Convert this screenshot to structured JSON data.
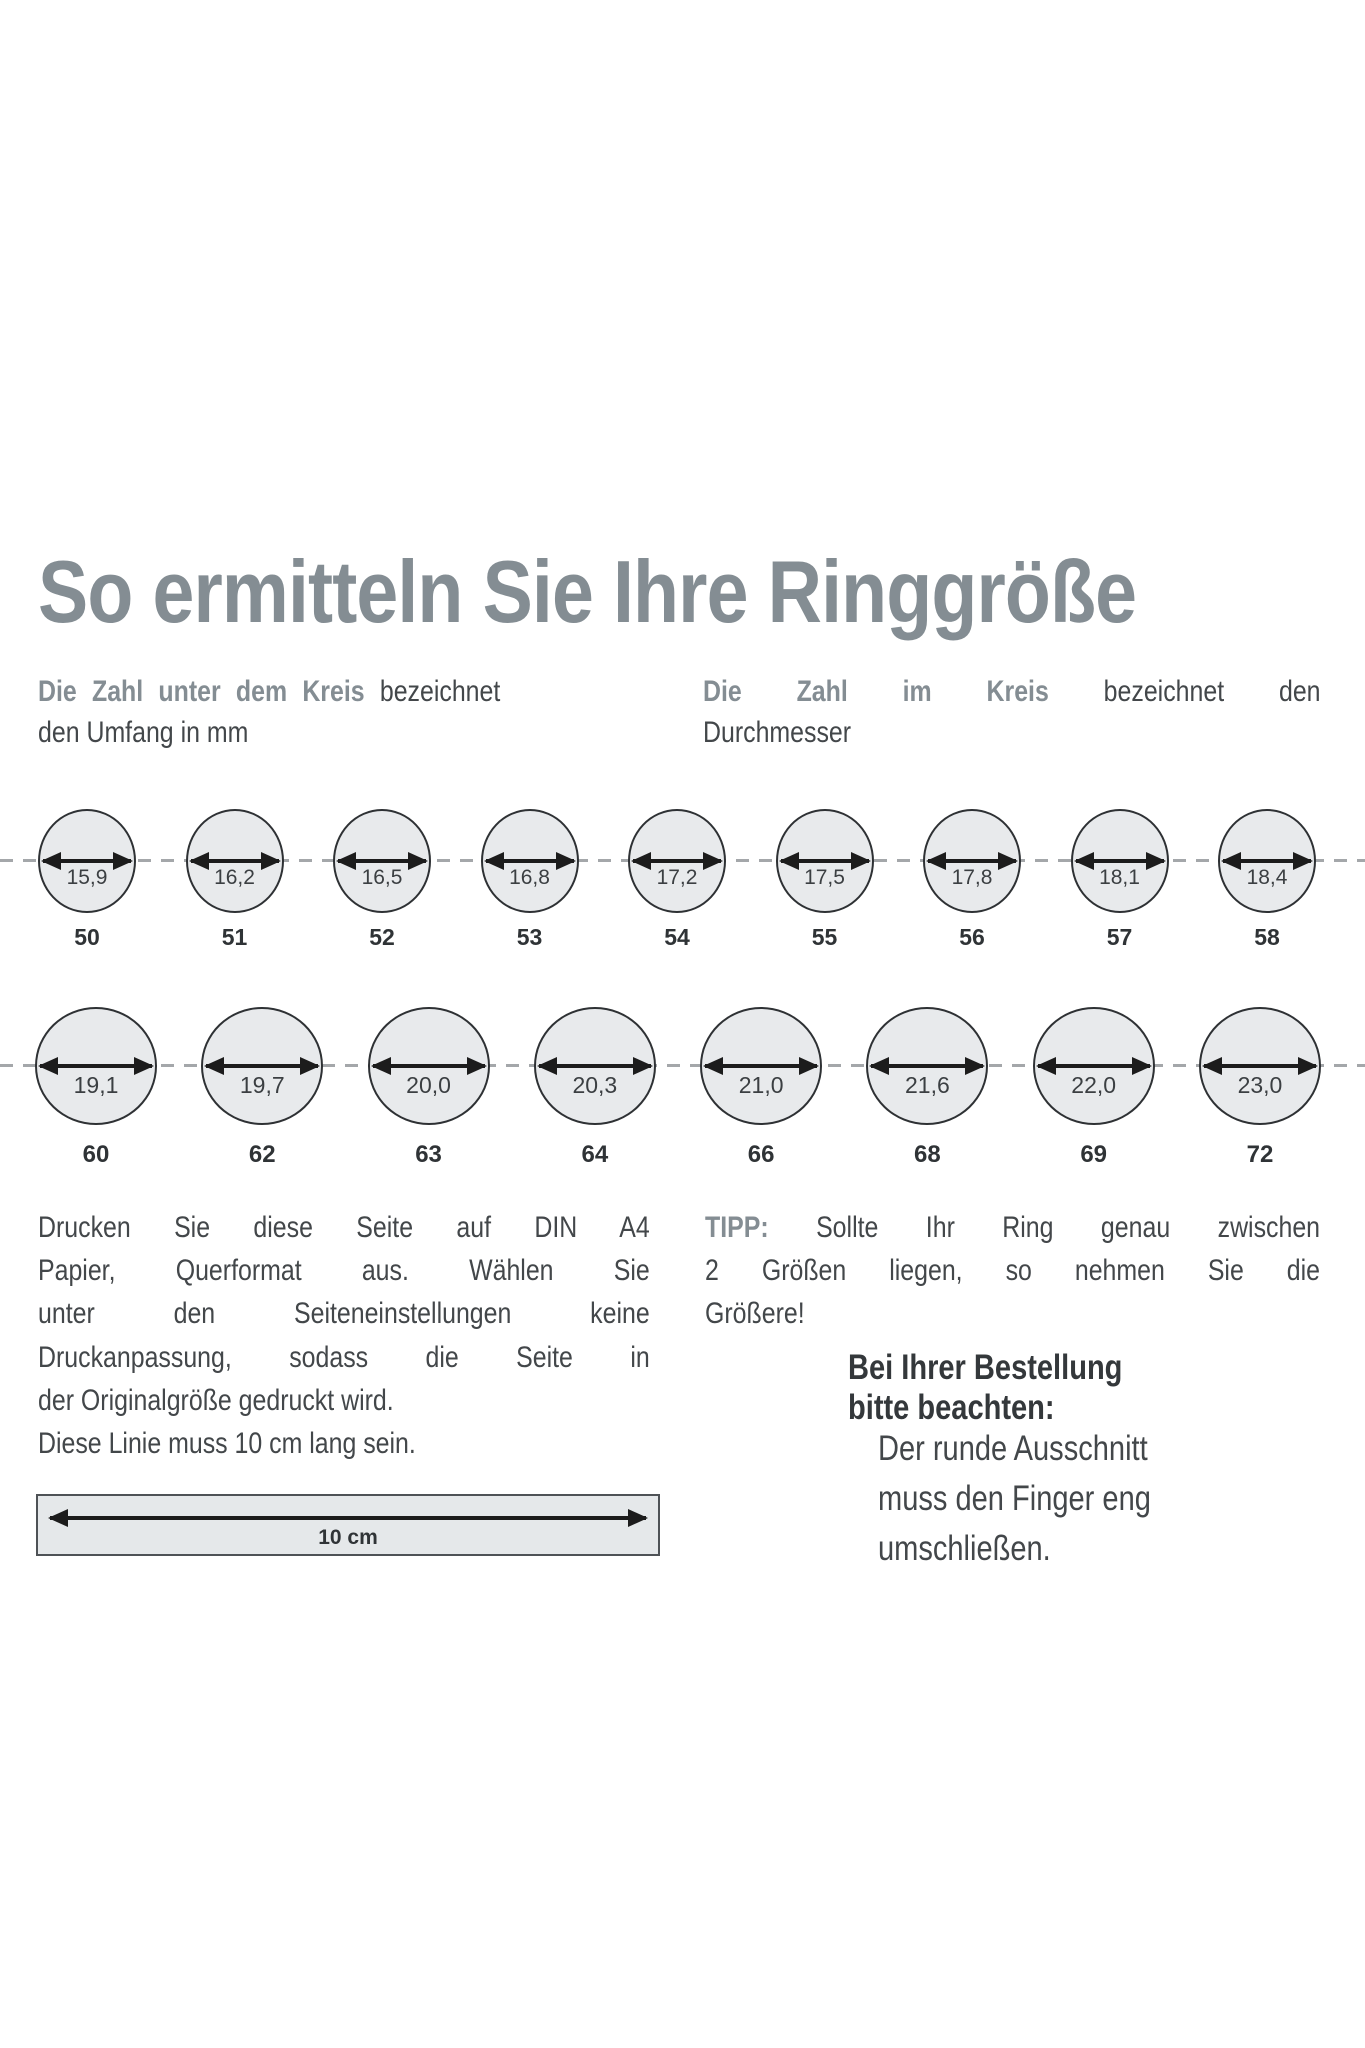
{
  "colors": {
    "accent_gray": "#848d93",
    "ink": "#43474a",
    "circle_fill": "#e8eaec"
  },
  "header": {
    "title": "So ermitteln Sie Ihre Ringgröße",
    "subtitle_left": {
      "bold": "Die Zahl unter dem Kreis",
      "rest": "bezeichnet",
      "line2": "den Umfang in mm"
    },
    "subtitle_right": {
      "bold": "Die Zahl im Kreis",
      "rest": "bezeichnet den",
      "line2": "Durchmesser"
    }
  },
  "rows": [
    {
      "name": "sizes-50-58",
      "rings": [
        {
          "diameter": "15,9",
          "size": "50"
        },
        {
          "diameter": "16,2",
          "size": "51"
        },
        {
          "diameter": "16,5",
          "size": "52"
        },
        {
          "diameter": "16,8",
          "size": "53"
        },
        {
          "diameter": "17,2",
          "size": "54"
        },
        {
          "diameter": "17,5",
          "size": "55"
        },
        {
          "diameter": "17,8",
          "size": "56"
        },
        {
          "diameter": "18,1",
          "size": "57"
        },
        {
          "diameter": "18,4",
          "size": "58"
        }
      ]
    },
    {
      "name": "sizes-60-72",
      "rings": [
        {
          "diameter": "19,1",
          "size": "60"
        },
        {
          "diameter": "19,7",
          "size": "62"
        },
        {
          "diameter": "20,0",
          "size": "63"
        },
        {
          "diameter": "20,3",
          "size": "64"
        },
        {
          "diameter": "21,0",
          "size": "66"
        },
        {
          "diameter": "21,6",
          "size": "68"
        },
        {
          "diameter": "22,0",
          "size": "69"
        },
        {
          "diameter": "23,0",
          "size": "72"
        }
      ]
    }
  ],
  "print_note": {
    "lines": [
      "Drucken Sie diese Seite auf DIN A4",
      "Papier, Querformat aus. Wählen Sie",
      "unter den Seiteneinstellungen keine",
      "Druckanpassung, sodass die Seite in",
      "der Originalgröße gedruckt wird.",
      "Diese Linie muss 10 cm lang sein."
    ]
  },
  "ruler": {
    "label": "10 cm"
  },
  "tip": {
    "label": "TIPP:",
    "line1_rest": "Sollte Ihr Ring genau zwischen",
    "line2": "2 Größen liegen, so nehmen Sie die",
    "line3": "Größere!"
  },
  "order_note": {
    "heading_line1": "Bei Ihrer Bestellung",
    "heading_line2": "bitte beachten:",
    "body_line1": "Der runde Ausschnitt",
    "body_line2": "muss den Finger eng",
    "body_line3": "umschließen."
  }
}
